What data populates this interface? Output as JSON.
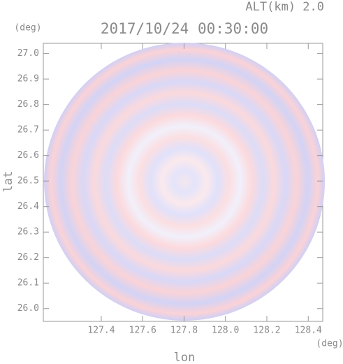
{
  "chart_data": {
    "type": "radar-image",
    "title": "2017/10/24 00:30:00",
    "subtitle": "ALT(km) 2.0",
    "x_label": "lon",
    "y_label": "lat",
    "x_unit": "(deg)",
    "y_unit": "(deg)",
    "xlim": [
      127.12,
      128.47
    ],
    "ylim": [
      25.95,
      27.04
    ],
    "xticks": [
      127.4,
      127.6,
      127.8,
      {
        "value": 128.0,
        "label": "128.0"
      },
      128.2,
      128.4
    ],
    "yticks": [
      {
        "value": 26.0,
        "label": "26.0"
      },
      26.1,
      26.2,
      26.3,
      26.4,
      26.5,
      26.6,
      26.7,
      26.8,
      26.9,
      {
        "value": 27.0,
        "label": "27.0"
      }
    ]
  }
}
